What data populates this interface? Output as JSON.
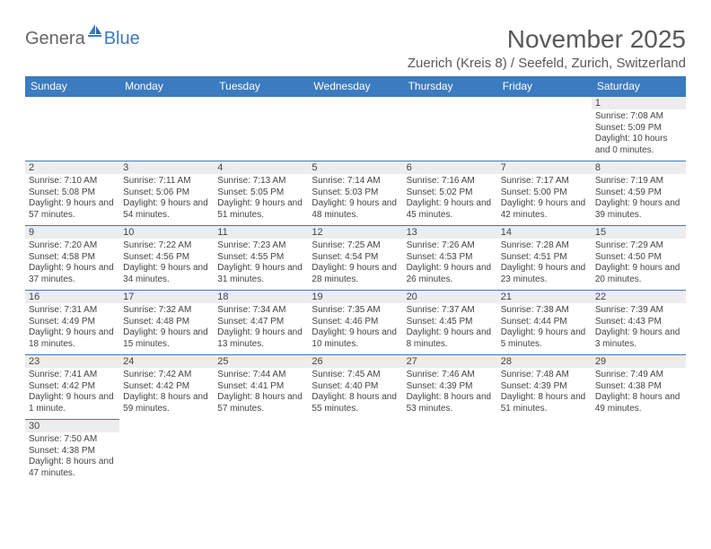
{
  "brand": {
    "part1": "Genera",
    "part2": "Blue"
  },
  "title": "November 2025",
  "location": "Zuerich (Kreis 8) / Seefeld, Zurich, Switzerland",
  "colors": {
    "header_bg": "#3b7bbf",
    "header_text": "#ffffff",
    "daynum_bg": "#ededed",
    "text": "#444444",
    "title": "#595959"
  },
  "fonts": {
    "title_size": 28,
    "location_size": 15,
    "header_size": 12,
    "day_size": 10
  },
  "weekdays": [
    "Sunday",
    "Monday",
    "Tuesday",
    "Wednesday",
    "Thursday",
    "Friday",
    "Saturday"
  ],
  "grid": [
    [
      null,
      null,
      null,
      null,
      null,
      null,
      {
        "n": "1",
        "sr": "7:08 AM",
        "ss": "5:09 PM",
        "dl": "10 hours and 0 minutes."
      }
    ],
    [
      {
        "n": "2",
        "sr": "7:10 AM",
        "ss": "5:08 PM",
        "dl": "9 hours and 57 minutes."
      },
      {
        "n": "3",
        "sr": "7:11 AM",
        "ss": "5:06 PM",
        "dl": "9 hours and 54 minutes."
      },
      {
        "n": "4",
        "sr": "7:13 AM",
        "ss": "5:05 PM",
        "dl": "9 hours and 51 minutes."
      },
      {
        "n": "5",
        "sr": "7:14 AM",
        "ss": "5:03 PM",
        "dl": "9 hours and 48 minutes."
      },
      {
        "n": "6",
        "sr": "7:16 AM",
        "ss": "5:02 PM",
        "dl": "9 hours and 45 minutes."
      },
      {
        "n": "7",
        "sr": "7:17 AM",
        "ss": "5:00 PM",
        "dl": "9 hours and 42 minutes."
      },
      {
        "n": "8",
        "sr": "7:19 AM",
        "ss": "4:59 PM",
        "dl": "9 hours and 39 minutes."
      }
    ],
    [
      {
        "n": "9",
        "sr": "7:20 AM",
        "ss": "4:58 PM",
        "dl": "9 hours and 37 minutes."
      },
      {
        "n": "10",
        "sr": "7:22 AM",
        "ss": "4:56 PM",
        "dl": "9 hours and 34 minutes."
      },
      {
        "n": "11",
        "sr": "7:23 AM",
        "ss": "4:55 PM",
        "dl": "9 hours and 31 minutes."
      },
      {
        "n": "12",
        "sr": "7:25 AM",
        "ss": "4:54 PM",
        "dl": "9 hours and 28 minutes."
      },
      {
        "n": "13",
        "sr": "7:26 AM",
        "ss": "4:53 PM",
        "dl": "9 hours and 26 minutes."
      },
      {
        "n": "14",
        "sr": "7:28 AM",
        "ss": "4:51 PM",
        "dl": "9 hours and 23 minutes."
      },
      {
        "n": "15",
        "sr": "7:29 AM",
        "ss": "4:50 PM",
        "dl": "9 hours and 20 minutes."
      }
    ],
    [
      {
        "n": "16",
        "sr": "7:31 AM",
        "ss": "4:49 PM",
        "dl": "9 hours and 18 minutes."
      },
      {
        "n": "17",
        "sr": "7:32 AM",
        "ss": "4:48 PM",
        "dl": "9 hours and 15 minutes."
      },
      {
        "n": "18",
        "sr": "7:34 AM",
        "ss": "4:47 PM",
        "dl": "9 hours and 13 minutes."
      },
      {
        "n": "19",
        "sr": "7:35 AM",
        "ss": "4:46 PM",
        "dl": "9 hours and 10 minutes."
      },
      {
        "n": "20",
        "sr": "7:37 AM",
        "ss": "4:45 PM",
        "dl": "9 hours and 8 minutes."
      },
      {
        "n": "21",
        "sr": "7:38 AM",
        "ss": "4:44 PM",
        "dl": "9 hours and 5 minutes."
      },
      {
        "n": "22",
        "sr": "7:39 AM",
        "ss": "4:43 PM",
        "dl": "9 hours and 3 minutes."
      }
    ],
    [
      {
        "n": "23",
        "sr": "7:41 AM",
        "ss": "4:42 PM",
        "dl": "9 hours and 1 minute."
      },
      {
        "n": "24",
        "sr": "7:42 AM",
        "ss": "4:42 PM",
        "dl": "8 hours and 59 minutes."
      },
      {
        "n": "25",
        "sr": "7:44 AM",
        "ss": "4:41 PM",
        "dl": "8 hours and 57 minutes."
      },
      {
        "n": "26",
        "sr": "7:45 AM",
        "ss": "4:40 PM",
        "dl": "8 hours and 55 minutes."
      },
      {
        "n": "27",
        "sr": "7:46 AM",
        "ss": "4:39 PM",
        "dl": "8 hours and 53 minutes."
      },
      {
        "n": "28",
        "sr": "7:48 AM",
        "ss": "4:39 PM",
        "dl": "8 hours and 51 minutes."
      },
      {
        "n": "29",
        "sr": "7:49 AM",
        "ss": "4:38 PM",
        "dl": "8 hours and 49 minutes."
      }
    ],
    [
      {
        "n": "30",
        "sr": "7:50 AM",
        "ss": "4:38 PM",
        "dl": "8 hours and 47 minutes."
      },
      null,
      null,
      null,
      null,
      null,
      null
    ]
  ],
  "labels": {
    "sunrise": "Sunrise: ",
    "sunset": "Sunset: ",
    "daylight": "Daylight: "
  }
}
